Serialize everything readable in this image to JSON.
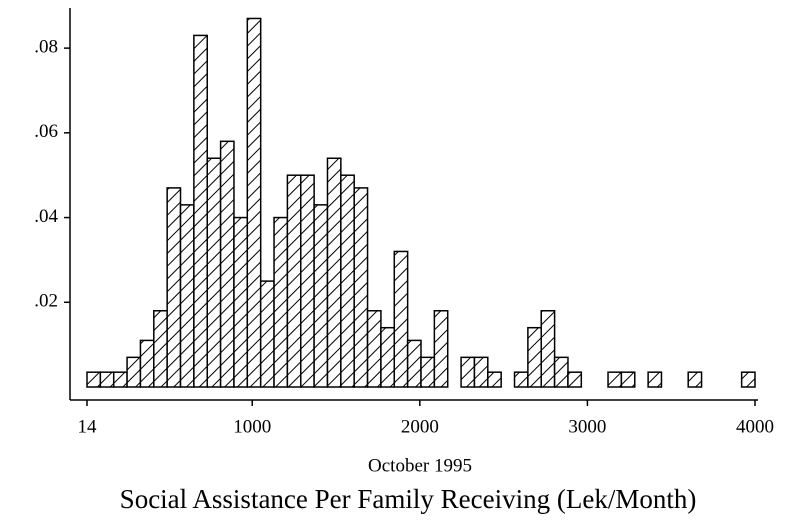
{
  "chart_data": {
    "type": "histogram",
    "title": "Social Assistance Per Family Receiving (Lek/Month)",
    "subtitle": "October 1995",
    "bins": [
      14,
      93.72,
      173.44,
      253.16,
      332.88,
      412.6,
      492.32,
      572.04,
      651.76,
      731.48,
      811.2,
      890.92,
      970.64,
      1050.36,
      1130.08,
      1209.8,
      1289.52,
      1369.24,
      1448.96,
      1528.68,
      1608.4,
      1688.12,
      1767.84,
      1847.56,
      1927.28,
      2007,
      2086.72,
      2166.44,
      2246.16,
      2325.88,
      2405.6,
      2485.32,
      2565.04,
      2644.76,
      2724.48,
      2804.2,
      2883.92,
      2963.64,
      3043.36,
      3123.08,
      3202.8,
      3282.52,
      3362.24,
      3441.96,
      3521.68,
      3601.4,
      3681.12,
      3760.84,
      3840.56,
      3920.28,
      4000
    ],
    "values": [
      0.0035,
      0.0035,
      0.0035,
      0.007,
      0.011,
      0.018,
      0.047,
      0.043,
      0.083,
      0.054,
      0.058,
      0.04,
      0.087,
      0.025,
      0.04,
      0.05,
      0.05,
      0.043,
      0.054,
      0.05,
      0.047,
      0.018,
      0.014,
      0.032,
      0.011,
      0.007,
      0.018,
      0,
      0.007,
      0.007,
      0.0035,
      0,
      0.0035,
      0.014,
      0.018,
      0.007,
      0.0035,
      0,
      0,
      0.0035,
      0.0035,
      0,
      0.0035,
      0,
      0,
      0.0035,
      0,
      0,
      0,
      0.0035
    ],
    "color": "#000000",
    "xlim": [
      14,
      4000
    ],
    "xticks": [
      14,
      1000,
      2000,
      3000,
      4000
    ],
    "ylim": [
      0,
      0.089
    ],
    "yticks": [
      {
        "value": 0.02,
        "label": ".02"
      },
      {
        "value": 0.04,
        "label": ".04"
      },
      {
        "value": 0.06,
        "label": ".06"
      },
      {
        "value": 0.08,
        "label": ".08"
      }
    ]
  }
}
